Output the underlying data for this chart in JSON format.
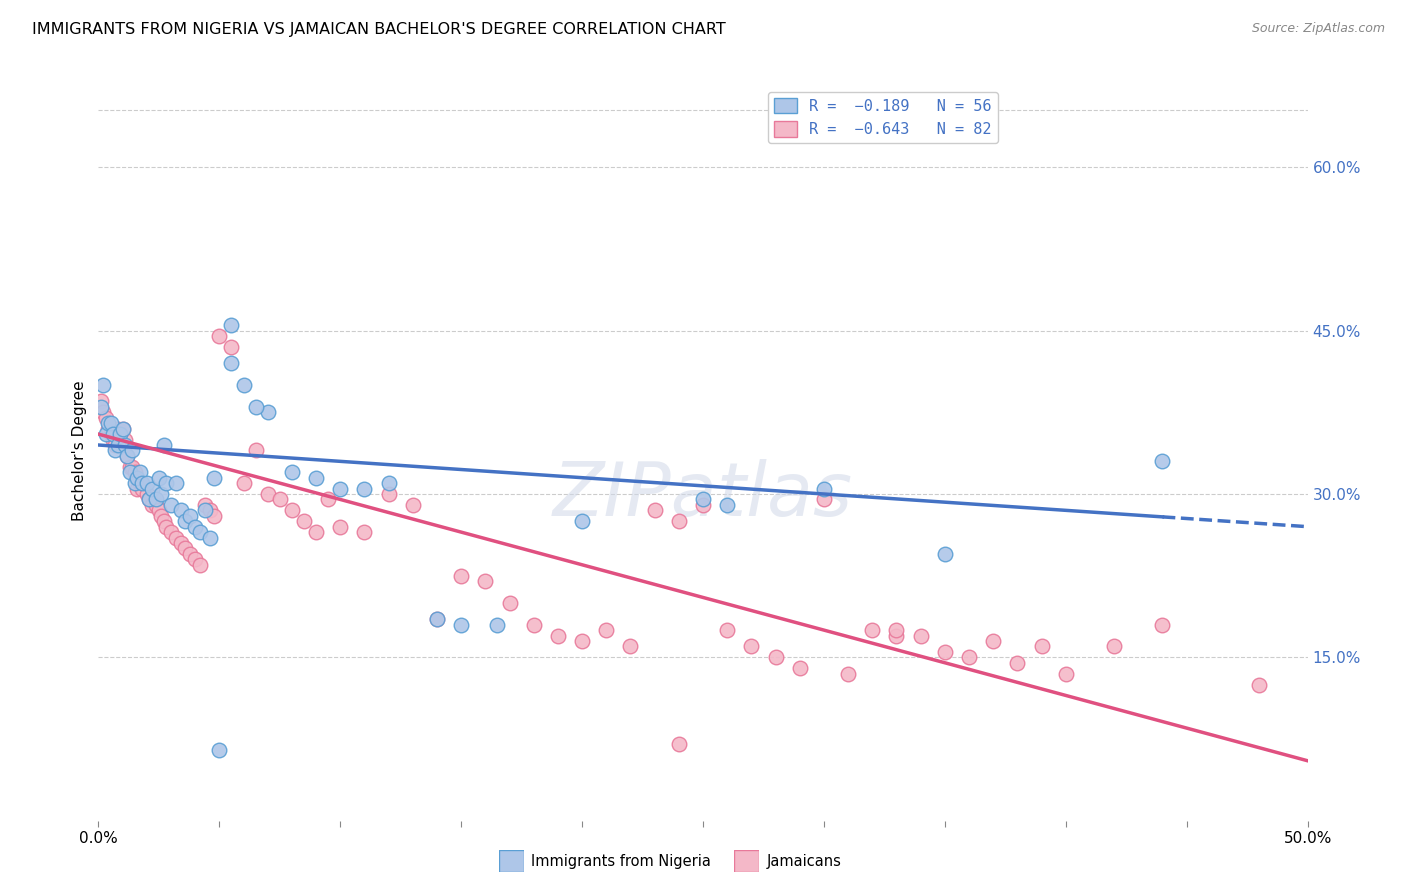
{
  "title": "IMMIGRANTS FROM NIGERIA VS JAMAICAN BACHELOR'S DEGREE CORRELATION CHART",
  "source": "Source: ZipAtlas.com",
  "ylabel": "Bachelor's Degree",
  "right_yticks": [
    "60.0%",
    "45.0%",
    "30.0%",
    "15.0%"
  ],
  "right_ytick_vals": [
    0.6,
    0.45,
    0.3,
    0.15
  ],
  "xlim": [
    0.0,
    0.5
  ],
  "ylim": [
    0.0,
    0.68
  ],
  "legend_label1": "Immigrants from Nigeria",
  "legend_label2": "Jamaicans",
  "watermark": "ZIPatlas",
  "nigeria_color": "#aec6e8",
  "nigeria_edge": "#5a9fd4",
  "jamaica_color": "#f4b8c8",
  "jamaica_edge": "#e8799a",
  "nigeria_line_color": "#4472c4",
  "jamaica_line_color": "#e05080",
  "nigeria_line_solid_end": 0.44,
  "nigeria_scatter": [
    [
      0.001,
      0.38
    ],
    [
      0.002,
      0.4
    ],
    [
      0.003,
      0.355
    ],
    [
      0.004,
      0.365
    ],
    [
      0.005,
      0.365
    ],
    [
      0.006,
      0.355
    ],
    [
      0.007,
      0.34
    ],
    [
      0.008,
      0.345
    ],
    [
      0.009,
      0.355
    ],
    [
      0.01,
      0.36
    ],
    [
      0.011,
      0.345
    ],
    [
      0.012,
      0.335
    ],
    [
      0.013,
      0.32
    ],
    [
      0.014,
      0.34
    ],
    [
      0.015,
      0.31
    ],
    [
      0.016,
      0.315
    ],
    [
      0.017,
      0.32
    ],
    [
      0.018,
      0.31
    ],
    [
      0.02,
      0.31
    ],
    [
      0.021,
      0.295
    ],
    [
      0.022,
      0.305
    ],
    [
      0.024,
      0.295
    ],
    [
      0.025,
      0.315
    ],
    [
      0.026,
      0.3
    ],
    [
      0.027,
      0.345
    ],
    [
      0.028,
      0.31
    ],
    [
      0.03,
      0.29
    ],
    [
      0.032,
      0.31
    ],
    [
      0.034,
      0.285
    ],
    [
      0.036,
      0.275
    ],
    [
      0.038,
      0.28
    ],
    [
      0.04,
      0.27
    ],
    [
      0.042,
      0.265
    ],
    [
      0.044,
      0.285
    ],
    [
      0.046,
      0.26
    ],
    [
      0.048,
      0.315
    ],
    [
      0.055,
      0.42
    ],
    [
      0.06,
      0.4
    ],
    [
      0.07,
      0.375
    ],
    [
      0.08,
      0.32
    ],
    [
      0.09,
      0.315
    ],
    [
      0.1,
      0.305
    ],
    [
      0.12,
      0.31
    ],
    [
      0.14,
      0.185
    ],
    [
      0.15,
      0.18
    ],
    [
      0.165,
      0.18
    ],
    [
      0.2,
      0.275
    ],
    [
      0.25,
      0.295
    ],
    [
      0.26,
      0.29
    ],
    [
      0.3,
      0.305
    ],
    [
      0.35,
      0.245
    ],
    [
      0.44,
      0.33
    ],
    [
      0.05,
      0.065
    ],
    [
      0.11,
      0.305
    ],
    [
      0.055,
      0.455
    ],
    [
      0.065,
      0.38
    ]
  ],
  "jamaica_scatter": [
    [
      0.001,
      0.385
    ],
    [
      0.002,
      0.375
    ],
    [
      0.003,
      0.37
    ],
    [
      0.004,
      0.36
    ],
    [
      0.005,
      0.355
    ],
    [
      0.006,
      0.35
    ],
    [
      0.007,
      0.345
    ],
    [
      0.008,
      0.36
    ],
    [
      0.009,
      0.355
    ],
    [
      0.01,
      0.36
    ],
    [
      0.011,
      0.35
    ],
    [
      0.012,
      0.335
    ],
    [
      0.013,
      0.325
    ],
    [
      0.014,
      0.325
    ],
    [
      0.015,
      0.32
    ],
    [
      0.016,
      0.305
    ],
    [
      0.017,
      0.31
    ],
    [
      0.018,
      0.305
    ],
    [
      0.02,
      0.3
    ],
    [
      0.021,
      0.295
    ],
    [
      0.022,
      0.29
    ],
    [
      0.024,
      0.29
    ],
    [
      0.025,
      0.285
    ],
    [
      0.026,
      0.28
    ],
    [
      0.027,
      0.275
    ],
    [
      0.028,
      0.27
    ],
    [
      0.03,
      0.265
    ],
    [
      0.032,
      0.26
    ],
    [
      0.034,
      0.255
    ],
    [
      0.036,
      0.25
    ],
    [
      0.038,
      0.245
    ],
    [
      0.04,
      0.24
    ],
    [
      0.042,
      0.235
    ],
    [
      0.044,
      0.29
    ],
    [
      0.046,
      0.285
    ],
    [
      0.048,
      0.28
    ],
    [
      0.05,
      0.445
    ],
    [
      0.055,
      0.435
    ],
    [
      0.06,
      0.31
    ],
    [
      0.065,
      0.34
    ],
    [
      0.07,
      0.3
    ],
    [
      0.075,
      0.295
    ],
    [
      0.08,
      0.285
    ],
    [
      0.085,
      0.275
    ],
    [
      0.09,
      0.265
    ],
    [
      0.095,
      0.295
    ],
    [
      0.1,
      0.27
    ],
    [
      0.11,
      0.265
    ],
    [
      0.12,
      0.3
    ],
    [
      0.13,
      0.29
    ],
    [
      0.14,
      0.185
    ],
    [
      0.15,
      0.225
    ],
    [
      0.16,
      0.22
    ],
    [
      0.17,
      0.2
    ],
    [
      0.18,
      0.18
    ],
    [
      0.19,
      0.17
    ],
    [
      0.2,
      0.165
    ],
    [
      0.21,
      0.175
    ],
    [
      0.22,
      0.16
    ],
    [
      0.23,
      0.285
    ],
    [
      0.24,
      0.275
    ],
    [
      0.25,
      0.29
    ],
    [
      0.26,
      0.175
    ],
    [
      0.27,
      0.16
    ],
    [
      0.28,
      0.15
    ],
    [
      0.29,
      0.14
    ],
    [
      0.3,
      0.295
    ],
    [
      0.31,
      0.135
    ],
    [
      0.32,
      0.175
    ],
    [
      0.33,
      0.17
    ],
    [
      0.34,
      0.17
    ],
    [
      0.35,
      0.155
    ],
    [
      0.36,
      0.15
    ],
    [
      0.37,
      0.165
    ],
    [
      0.38,
      0.145
    ],
    [
      0.39,
      0.16
    ],
    [
      0.4,
      0.135
    ],
    [
      0.42,
      0.16
    ],
    [
      0.44,
      0.18
    ],
    [
      0.48,
      0.125
    ],
    [
      0.24,
      0.07
    ],
    [
      0.33,
      0.175
    ]
  ],
  "nigeria_trendline": [
    0.0,
    0.345,
    0.5,
    0.27
  ],
  "jamaica_trendline": [
    0.0,
    0.355,
    0.5,
    0.055
  ]
}
